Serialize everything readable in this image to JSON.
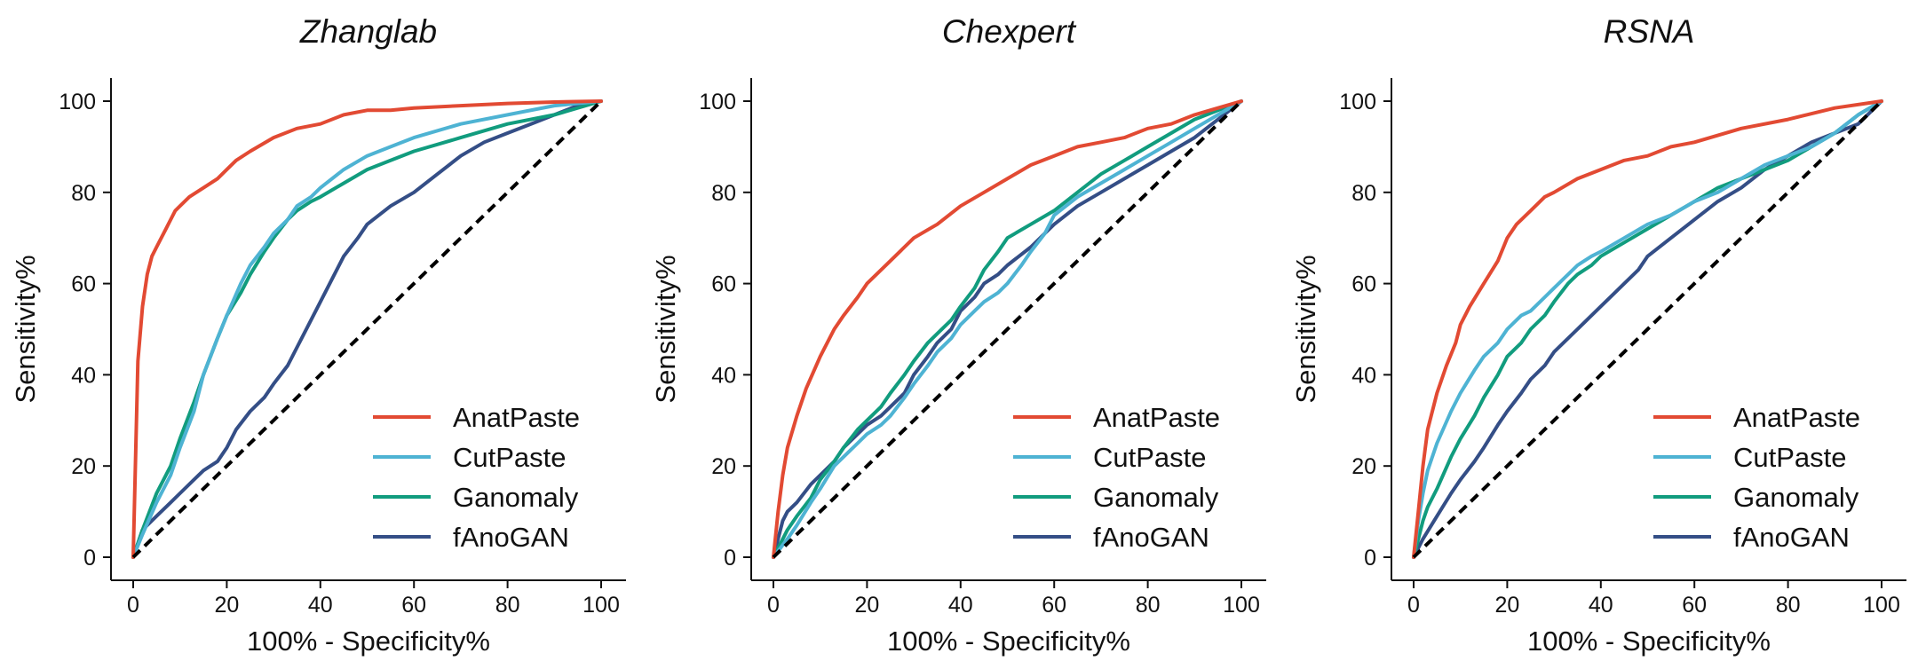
{
  "figure": {
    "legend_position": "lower-right",
    "diagonal_reference": "dashed black line from (0,0) to (100,100)",
    "colors": {
      "AnatPaste": "#E24A33",
      "CutPaste": "#4EB3D3",
      "Ganomaly": "#119C7E",
      "fAnoGAN": "#344E86",
      "diagonal": "#000000",
      "axis": "#111111"
    }
  },
  "chart_data": [
    {
      "type": "line",
      "title": "Zhanglab",
      "xlabel": "100% - Specificity%",
      "ylabel": "Sensitivity%",
      "xlim": [
        0,
        100
      ],
      "ylim": [
        0,
        100
      ],
      "xticks": [
        "0",
        "20",
        "40",
        "60",
        "80",
        "100"
      ],
      "yticks": [
        "0",
        "20",
        "40",
        "60",
        "80",
        "100"
      ],
      "grid": false,
      "legend": [
        "AnatPaste",
        "CutPaste",
        "Ganomaly",
        "fAnoGAN"
      ],
      "series": [
        {
          "name": "AnatPaste",
          "x": [
            0,
            1,
            2,
            3,
            4,
            5,
            7,
            9,
            10,
            12,
            15,
            18,
            20,
            22,
            25,
            30,
            35,
            40,
            45,
            50,
            55,
            60,
            70,
            80,
            90,
            100
          ],
          "y": [
            0,
            43,
            55,
            62,
            66,
            68,
            72,
            76,
            77,
            79,
            81,
            83,
            85,
            87,
            89,
            92,
            94,
            95,
            97,
            98,
            98,
            98.5,
            99,
            99.5,
            99.8,
            100
          ]
        },
        {
          "name": "CutPaste",
          "x": [
            0,
            2,
            5,
            8,
            10,
            13,
            15,
            18,
            20,
            23,
            25,
            28,
            30,
            33,
            35,
            38,
            40,
            45,
            50,
            55,
            60,
            70,
            80,
            90,
            100
          ],
          "y": [
            0,
            5,
            12,
            18,
            24,
            32,
            40,
            48,
            53,
            60,
            64,
            68,
            71,
            74,
            77,
            79,
            81,
            85,
            88,
            90,
            92,
            95,
            97,
            99,
            100
          ]
        },
        {
          "name": "Ganomaly",
          "x": [
            0,
            2,
            5,
            8,
            10,
            13,
            15,
            18,
            20,
            23,
            25,
            28,
            30,
            33,
            35,
            38,
            40,
            45,
            50,
            55,
            60,
            70,
            80,
            90,
            100
          ],
          "y": [
            0,
            6,
            14,
            20,
            26,
            34,
            40,
            48,
            53,
            58,
            62,
            67,
            70,
            74,
            76,
            78,
            79,
            82,
            85,
            87,
            89,
            92,
            95,
            97,
            100
          ]
        },
        {
          "name": "fAnoGAN",
          "x": [
            0,
            2,
            5,
            8,
            10,
            13,
            15,
            18,
            20,
            22,
            25,
            28,
            30,
            33,
            35,
            38,
            40,
            43,
            45,
            48,
            50,
            55,
            60,
            65,
            70,
            75,
            80,
            85,
            90,
            95,
            100
          ],
          "y": [
            0,
            6,
            9,
            12,
            14,
            17,
            19,
            21,
            24,
            28,
            32,
            35,
            38,
            42,
            46,
            52,
            56,
            62,
            66,
            70,
            73,
            77,
            80,
            84,
            88,
            91,
            93,
            95,
            97,
            99,
            100
          ]
        }
      ]
    },
    {
      "type": "line",
      "title": "Chexpert",
      "xlabel": "100% - Specificity%",
      "ylabel": "Sensitivity%",
      "xlim": [
        0,
        100
      ],
      "ylim": [
        0,
        100
      ],
      "xticks": [
        "0",
        "20",
        "40",
        "60",
        "80",
        "100"
      ],
      "yticks": [
        "0",
        "20",
        "40",
        "60",
        "80",
        "100"
      ],
      "grid": false,
      "legend": [
        "AnatPaste",
        "CutPaste",
        "Ganomaly",
        "fAnoGAN"
      ],
      "series": [
        {
          "name": "AnatPaste",
          "x": [
            0,
            1,
            2,
            3,
            5,
            7,
            10,
            13,
            15,
            18,
            20,
            25,
            30,
            35,
            40,
            45,
            50,
            55,
            60,
            65,
            70,
            75,
            80,
            85,
            90,
            95,
            100
          ],
          "y": [
            0,
            10,
            18,
            24,
            31,
            37,
            44,
            50,
            53,
            57,
            60,
            65,
            70,
            73,
            77,
            80,
            83,
            86,
            88,
            90,
            91,
            92,
            94,
            95,
            97,
            98.5,
            100
          ]
        },
        {
          "name": "CutPaste",
          "x": [
            0,
            3,
            5,
            8,
            10,
            13,
            15,
            18,
            20,
            23,
            25,
            28,
            30,
            33,
            35,
            38,
            40,
            43,
            45,
            48,
            50,
            53,
            55,
            58,
            60,
            65,
            70,
            75,
            80,
            85,
            90,
            95,
            100
          ],
          "y": [
            0,
            4,
            7,
            12,
            15,
            20,
            22,
            25,
            27,
            29,
            31,
            35,
            38,
            42,
            45,
            48,
            51,
            54,
            56,
            58,
            60,
            64,
            67,
            71,
            75,
            79,
            82,
            85,
            88,
            91,
            94,
            97,
            100
          ]
        },
        {
          "name": "Ganomaly",
          "x": [
            0,
            3,
            5,
            8,
            10,
            13,
            15,
            18,
            20,
            23,
            25,
            28,
            30,
            33,
            35,
            38,
            40,
            43,
            45,
            48,
            50,
            55,
            60,
            65,
            70,
            75,
            80,
            85,
            90,
            95,
            100
          ],
          "y": [
            0,
            6,
            9,
            13,
            17,
            21,
            24,
            28,
            30,
            33,
            36,
            40,
            43,
            47,
            49,
            52,
            55,
            59,
            63,
            67,
            70,
            73,
            76,
            80,
            84,
            87,
            90,
            93,
            96,
            98,
            100
          ]
        },
        {
          "name": "fAnoGAN",
          "x": [
            0,
            2,
            3,
            5,
            8,
            10,
            13,
            15,
            18,
            20,
            23,
            25,
            28,
            30,
            33,
            35,
            38,
            40,
            43,
            45,
            48,
            50,
            55,
            60,
            65,
            70,
            75,
            80,
            85,
            90,
            95,
            100
          ],
          "y": [
            0,
            8,
            10,
            12,
            16,
            18,
            21,
            24,
            27,
            29,
            31,
            33,
            36,
            40,
            44,
            47,
            50,
            54,
            57,
            60,
            62,
            64,
            68,
            73,
            77,
            80,
            83,
            86,
            89,
            92,
            96,
            100
          ]
        }
      ]
    },
    {
      "type": "line",
      "title": "RSNA",
      "xlabel": "100% - Specificity%",
      "ylabel": "Sensitivity%",
      "xlim": [
        0,
        100
      ],
      "ylim": [
        0,
        100
      ],
      "xticks": [
        "0",
        "20",
        "40",
        "60",
        "80",
        "100"
      ],
      "yticks": [
        "0",
        "20",
        "40",
        "60",
        "80",
        "100"
      ],
      "grid": false,
      "legend": [
        "AnatPaste",
        "CutPaste",
        "Ganomaly",
        "fAnoGAN"
      ],
      "series": [
        {
          "name": "AnatPaste",
          "x": [
            0,
            1,
            2,
            3,
            5,
            7,
            9,
            10,
            12,
            15,
            18,
            20,
            22,
            25,
            28,
            30,
            35,
            40,
            45,
            50,
            55,
            60,
            70,
            80,
            90,
            100
          ],
          "y": [
            0,
            10,
            20,
            28,
            36,
            42,
            47,
            51,
            55,
            60,
            65,
            70,
            73,
            76,
            79,
            80,
            83,
            85,
            87,
            88,
            90,
            91,
            94,
            96,
            98.5,
            100
          ]
        },
        {
          "name": "CutPaste",
          "x": [
            0,
            1,
            2,
            3,
            5,
            8,
            10,
            13,
            15,
            18,
            20,
            23,
            25,
            28,
            30,
            33,
            35,
            38,
            40,
            45,
            50,
            55,
            60,
            65,
            70,
            75,
            80,
            85,
            90,
            95,
            100
          ],
          "y": [
            0,
            8,
            14,
            19,
            25,
            32,
            36,
            41,
            44,
            47,
            50,
            53,
            54,
            57,
            59,
            62,
            64,
            66,
            67,
            70,
            73,
            75,
            78,
            80,
            83,
            86,
            88,
            90,
            93,
            97,
            100
          ]
        },
        {
          "name": "Ganomaly",
          "x": [
            0,
            1,
            2,
            3,
            5,
            8,
            10,
            13,
            15,
            18,
            20,
            23,
            25,
            28,
            30,
            33,
            35,
            38,
            40,
            45,
            50,
            55,
            60,
            65,
            70,
            75,
            80,
            85,
            90,
            95,
            100
          ],
          "y": [
            0,
            4,
            8,
            11,
            15,
            22,
            26,
            31,
            35,
            40,
            44,
            47,
            50,
            53,
            56,
            60,
            62,
            64,
            66,
            69,
            72,
            75,
            78,
            81,
            83,
            85,
            87,
            90,
            93,
            97,
            100
          ]
        },
        {
          "name": "fAnoGAN",
          "x": [
            0,
            2,
            5,
            8,
            10,
            13,
            15,
            18,
            20,
            23,
            25,
            28,
            30,
            33,
            35,
            38,
            40,
            43,
            45,
            48,
            50,
            55,
            60,
            65,
            70,
            75,
            80,
            85,
            90,
            95,
            100
          ],
          "y": [
            0,
            4,
            9,
            14,
            17,
            21,
            24,
            29,
            32,
            36,
            39,
            42,
            45,
            48,
            50,
            53,
            55,
            58,
            60,
            63,
            66,
            70,
            74,
            78,
            81,
            85,
            88,
            91,
            93,
            95,
            100
          ]
        }
      ]
    }
  ]
}
